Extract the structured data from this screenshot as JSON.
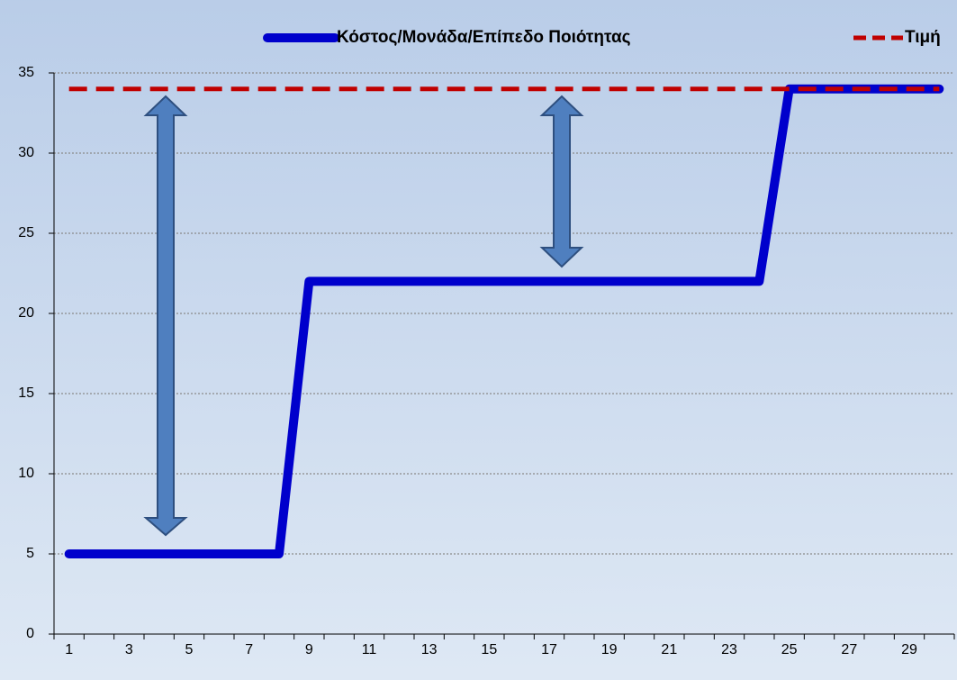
{
  "chart_data": {
    "type": "line",
    "categories": [
      1,
      null,
      3,
      null,
      5,
      null,
      7,
      null,
      9,
      null,
      11,
      null,
      13,
      null,
      15,
      null,
      17,
      null,
      19,
      null,
      21,
      null,
      23,
      null,
      25,
      null,
      27,
      null,
      29,
      null
    ],
    "series": [
      {
        "name": "Κόστος/Μονάδα/Επίπεδο Ποιότητας",
        "color": "#0000cc",
        "style": "solid",
        "values": [
          5,
          5,
          5,
          5,
          5,
          5,
          5,
          5,
          22,
          22,
          22,
          22,
          22,
          22,
          22,
          22,
          22,
          22,
          22,
          22,
          22,
          22,
          22,
          22,
          34,
          34,
          34,
          34,
          34,
          34
        ]
      },
      {
        "name": "Τιμή",
        "color": "#c00000",
        "style": "dashed",
        "values": [
          34,
          34,
          34,
          34,
          34,
          34,
          34,
          34,
          34,
          34,
          34,
          34,
          34,
          34,
          34,
          34,
          34,
          34,
          34,
          34,
          34,
          34,
          34,
          34,
          34,
          34,
          34,
          34,
          34,
          34
        ]
      }
    ],
    "ylim": [
      0,
      35
    ],
    "yticks": [
      0,
      5,
      10,
      15,
      20,
      25,
      30,
      35
    ],
    "grid": true,
    "legend": "top"
  }
}
